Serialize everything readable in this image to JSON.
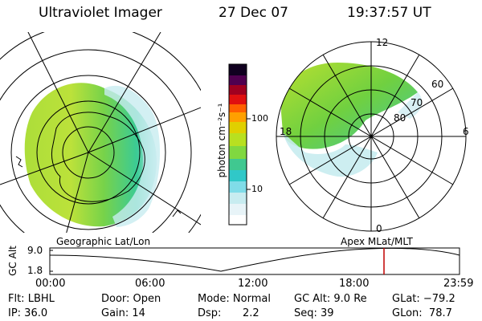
{
  "header": {
    "instrument": "Ultraviolet Imager",
    "date": "27 Dec 07",
    "time": "19:37:57 UT"
  },
  "colorbar": {
    "unit_label": "photon cm⁻²s⁻¹",
    "tick_100": "100",
    "tick_10": "10",
    "colors": [
      "#ffffff",
      "#e8f4f8",
      "#c8ecf0",
      "#80dce8",
      "#30c8c8",
      "#40c890",
      "#80d840",
      "#b8e020",
      "#e0d000",
      "#ffa000",
      "#ff6000",
      "#e01010",
      "#a00020",
      "#500050",
      "#100020"
    ]
  },
  "geographic_panel": {
    "caption": "Geographic Lat/Lon"
  },
  "apex_panel": {
    "caption": "Apex MLat/MLT",
    "mlt_labels": {
      "top": "12",
      "left": "18",
      "right": "6",
      "bottom": "0"
    },
    "mlat_labels": [
      "60",
      "70",
      "80"
    ]
  },
  "altitude_plot": {
    "ylabel": "GC Alt",
    "ytick_top": "9.0",
    "ytick_bottom": "1.8",
    "xticks": [
      "00:00",
      "06:00",
      "12:00",
      "18:00",
      "23:59"
    ],
    "marker_color": "#c00000"
  },
  "status": {
    "filter": "Flt: LBHL",
    "ip": "IP: 36.0",
    "door": "Door: Open",
    "gain": "Gain: 14",
    "mode": "Mode: Normal",
    "dsp_label": "Dsp:",
    "dsp_value": "2.2",
    "gc_alt": "GC Alt: 9.0 Re",
    "seq": "Seq: 39",
    "glat": "GLat: −79.2",
    "glon": "GLon:  78.7"
  }
}
